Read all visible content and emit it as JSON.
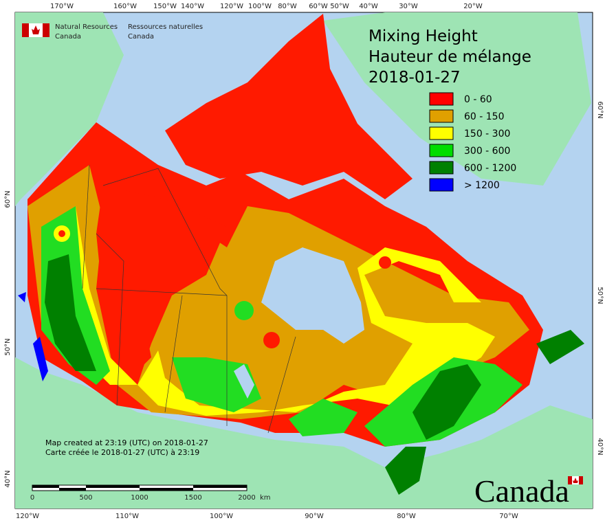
{
  "logo": {
    "en": [
      "Natural Resources",
      "Canada"
    ],
    "fr": [
      "Ressources naturelles",
      "Canada"
    ]
  },
  "title": [
    "Mixing Height",
    "Hauteur de mélange",
    "2018-01-27"
  ],
  "legend": [
    {
      "label": "0 - 60",
      "color": "#ff0000"
    },
    {
      "label": "60 - 150",
      "color": "#e0a000"
    },
    {
      "label": "150 - 300",
      "color": "#ffff00"
    },
    {
      "label": "300 - 600",
      "color": "#00dd00"
    },
    {
      "label": "600 - 1200",
      "color": "#008000"
    },
    {
      "label": "> 1200",
      "color": "#0000ff"
    }
  ],
  "top_labels": [
    "170°W",
    "160°W",
    "150°W",
    "140°W",
    "120°W",
    "100°W",
    "80°W",
    "60°W",
    "50°W",
    "40°W",
    "30°W",
    "20°W"
  ],
  "bottom_labels": [
    "120°W",
    "110°W",
    "100°W",
    "90°W",
    "80°W",
    "70°W"
  ],
  "left_labels": [
    "60°N",
    "50°N",
    "40°N"
  ],
  "right_labels": [
    "60°N",
    "50°N",
    "40°N"
  ],
  "notes": [
    "Map created at 23:19 (UTC) on 2018-01-27",
    "Carte créée le 2018-01-27 (UTC) à 23:19"
  ],
  "scale": {
    "ticks": [
      "0",
      "500",
      "1000",
      "1500",
      "2000"
    ],
    "unit": "km"
  },
  "wordmark": "Canada"
}
